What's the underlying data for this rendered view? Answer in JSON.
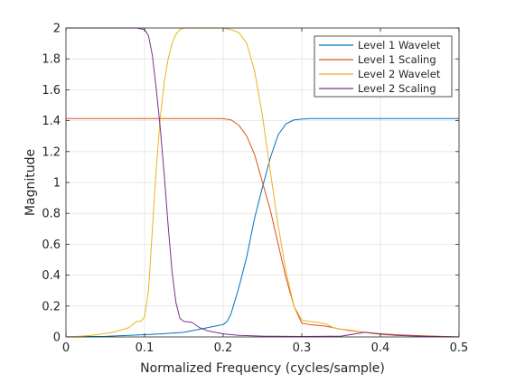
{
  "chart_data": {
    "type": "line",
    "title": "",
    "xlabel": "Normalized Frequency (cycles/sample)",
    "ylabel": "Magnitude",
    "xlim": [
      0,
      0.5
    ],
    "ylim": [
      0,
      2
    ],
    "xticks": [
      "0",
      "0.1",
      "0.2",
      "0.3",
      "0.4",
      "0.5"
    ],
    "yticks": [
      "0",
      "0.2",
      "0.4",
      "0.6",
      "0.8",
      "1",
      "1.2",
      "1.4",
      "1.6",
      "1.8",
      "2"
    ],
    "xtick_values": [
      0,
      0.1,
      0.2,
      0.3,
      0.4,
      0.5
    ],
    "ytick_values": [
      0,
      0.2,
      0.4,
      0.6,
      0.8,
      1,
      1.2,
      1.4,
      1.6,
      1.8,
      2
    ],
    "grid": true,
    "legend_position": "top-right",
    "series": [
      {
        "name": "Level 1 Wavelet",
        "color": "#0072BD",
        "x": [
          0,
          0.02,
          0.05,
          0.08,
          0.1,
          0.12,
          0.15,
          0.17,
          0.19,
          0.2,
          0.205,
          0.21,
          0.22,
          0.23,
          0.24,
          0.25,
          0.26,
          0.27,
          0.28,
          0.29,
          0.3,
          0.31,
          0.33,
          0.36,
          0.4,
          0.45,
          0.5
        ],
        "y": [
          0,
          0.002,
          0.004,
          0.01,
          0.015,
          0.02,
          0.03,
          0.05,
          0.07,
          0.08,
          0.1,
          0.15,
          0.32,
          0.52,
          0.77,
          0.97,
          1.16,
          1.31,
          1.38,
          1.405,
          1.41,
          1.414,
          1.414,
          1.414,
          1.414,
          1.414,
          1.414
        ]
      },
      {
        "name": "Level 1 Scaling",
        "color": "#D95319",
        "x": [
          0,
          0.05,
          0.1,
          0.15,
          0.19,
          0.2,
          0.21,
          0.22,
          0.23,
          0.24,
          0.25,
          0.26,
          0.27,
          0.28,
          0.29,
          0.3,
          0.31,
          0.32,
          0.33,
          0.35,
          0.38,
          0.4,
          0.42,
          0.45,
          0.5
        ],
        "y": [
          1.414,
          1.414,
          1.414,
          1.414,
          1.414,
          1.413,
          1.405,
          1.37,
          1.3,
          1.18,
          1.0,
          0.82,
          0.6,
          0.38,
          0.2,
          0.09,
          0.08,
          0.075,
          0.07,
          0.05,
          0.03,
          0.02,
          0.015,
          0.008,
          0.0
        ]
      },
      {
        "name": "Level 2 Wavelet",
        "color": "#EDB120",
        "x": [
          0,
          0.02,
          0.04,
          0.06,
          0.08,
          0.09,
          0.095,
          0.1,
          0.105,
          0.11,
          0.115,
          0.12,
          0.125,
          0.13,
          0.135,
          0.14,
          0.145,
          0.15,
          0.16,
          0.18,
          0.2,
          0.21,
          0.22,
          0.23,
          0.24,
          0.25,
          0.26,
          0.27,
          0.28,
          0.29,
          0.3,
          0.31,
          0.32,
          0.33,
          0.34,
          0.36,
          0.38,
          0.4,
          0.45,
          0.5
        ],
        "y": [
          0,
          0.005,
          0.015,
          0.03,
          0.06,
          0.1,
          0.1,
          0.13,
          0.3,
          0.7,
          1.1,
          1.42,
          1.65,
          1.8,
          1.9,
          1.96,
          1.99,
          2.0,
          2.0,
          2.0,
          2.0,
          1.99,
          1.97,
          1.9,
          1.72,
          1.43,
          1.07,
          0.72,
          0.42,
          0.2,
          0.11,
          0.1,
          0.095,
          0.085,
          0.06,
          0.04,
          0.03,
          0.015,
          0.005,
          0.0
        ]
      },
      {
        "name": "Level 2 Scaling",
        "color": "#7E2F8E",
        "x": [
          0,
          0.05,
          0.09,
          0.1,
          0.105,
          0.11,
          0.115,
          0.12,
          0.125,
          0.13,
          0.135,
          0.14,
          0.145,
          0.15,
          0.16,
          0.17,
          0.18,
          0.2,
          0.22,
          0.25,
          0.3,
          0.35,
          0.38,
          0.4,
          0.42,
          0.45,
          0.5
        ],
        "y": [
          2.0,
          2.0,
          2.0,
          1.99,
          1.95,
          1.82,
          1.6,
          1.35,
          1.05,
          0.72,
          0.42,
          0.22,
          0.12,
          0.1,
          0.095,
          0.06,
          0.04,
          0.02,
          0.01,
          0.005,
          0.003,
          0.005,
          0.03,
          0.02,
          0.01,
          0.005,
          0.0
        ]
      }
    ]
  }
}
